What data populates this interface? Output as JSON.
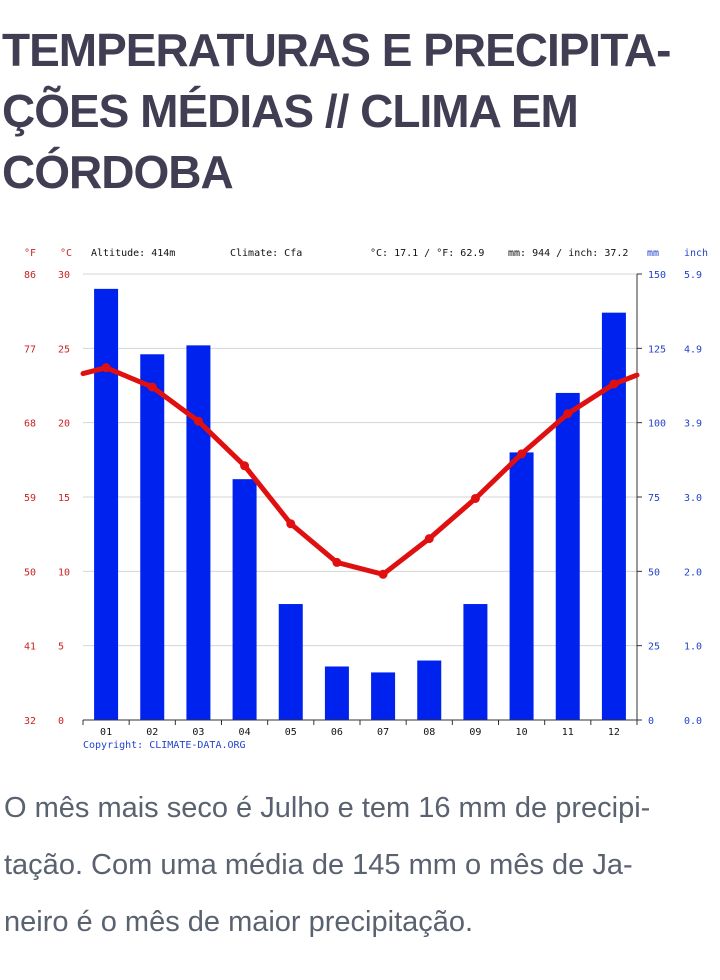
{
  "page": {
    "title_lines": [
      "TEMPERATURAS E PRECIPITA-",
      "ÇÕES MÉDIAS // CLIMA EM",
      "CÓRDOBA"
    ],
    "description_lines": [
      "O mês mais seco é Julho e tem 16 mm de precipi-",
      "tação. Com uma média de 145 mm o mês de Ja-",
      "neiro é o mês de maior precipitação."
    ]
  },
  "chart_data": {
    "type": "bar+line",
    "header": {
      "f_unit": "°F",
      "c_unit": "°C",
      "altitude": "Altitude: 414m",
      "climate": "Climate: Cfa",
      "temp_avg": "°C: 17.1 / °F: 62.9",
      "precip_total": "mm: 944 / inch: 37.2",
      "mm_unit": "mm",
      "inch_unit": "inch"
    },
    "categories": [
      "01",
      "02",
      "03",
      "04",
      "05",
      "06",
      "07",
      "08",
      "09",
      "10",
      "11",
      "12"
    ],
    "precipitation_mm": [
      145,
      123,
      126,
      81,
      39,
      18,
      16,
      20,
      39,
      90,
      110,
      137
    ],
    "temperature_c": [
      23.7,
      22.4,
      20.1,
      17.1,
      13.2,
      10.6,
      9.8,
      12.2,
      14.9,
      17.9,
      20.6,
      22.6
    ],
    "temp_left_edge_c": 23.3,
    "temp_right_edge_c": 23.2,
    "celsius_ticks": [
      "0",
      "5",
      "10",
      "15",
      "20",
      "25",
      "30"
    ],
    "fahrenheit_ticks": [
      "32",
      "41",
      "50",
      "59",
      "68",
      "77",
      "86"
    ],
    "mm_ticks": [
      "0",
      "25",
      "50",
      "75",
      "100",
      "125",
      "150"
    ],
    "inch_ticks": [
      "0.0",
      "1.0",
      "2.0",
      "3.0",
      "3.9",
      "4.9",
      "5.9"
    ],
    "ylim_c": [
      0,
      30
    ],
    "ylim_mm": [
      0,
      150
    ],
    "grid": true,
    "copyright": "Copyright: CLIMATE-DATA.ORG",
    "colors": {
      "bars": "#0022ee",
      "line": "#e01010",
      "temp_axis": "#cc2222",
      "precip_axis": "#2244cc",
      "grid": "#d4d4d4",
      "axis": "#333333"
    }
  }
}
